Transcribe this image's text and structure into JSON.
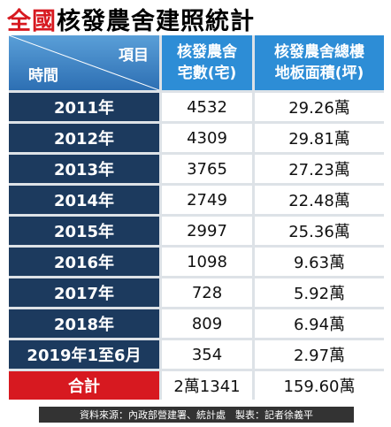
{
  "title": {
    "highlight": "全國",
    "rest": "核發農舍建照統計"
  },
  "header": {
    "corner_top": "項目",
    "corner_bottom": "時間",
    "col1": [
      "核發農舍",
      "宅數(宅)"
    ],
    "col2": [
      "核發農舍總樓",
      "地板面積(坪)"
    ]
  },
  "rows": [
    [
      "2011年",
      "4532",
      "29.26萬"
    ],
    [
      "2012年",
      "4309",
      "29.81萬"
    ],
    [
      "2013年",
      "3765",
      "27.23萬"
    ],
    [
      "2014年",
      "2749",
      "22.48萬"
    ],
    [
      "2015年",
      "2997",
      "25.36萬"
    ],
    [
      "2016年",
      "1098",
      "9.63萬"
    ],
    [
      "2017年",
      "728",
      "5.92萬"
    ],
    [
      "2018年",
      "809",
      "6.94萬"
    ],
    [
      "2019年1至6月",
      "354",
      "2.97萬"
    ]
  ],
  "total": [
    "合計",
    "2萬1341",
    "159.60萬"
  ],
  "footer": "資料來源：內政部營建署、統計處　製表：記者徐義平"
}
